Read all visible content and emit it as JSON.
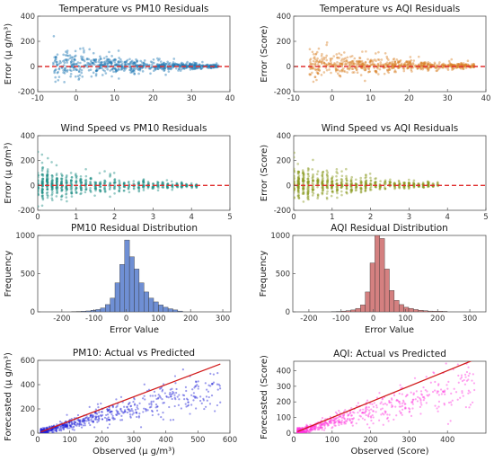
{
  "colors": {
    "pm10_scatter": "#1f77b4",
    "aqi_scatter": "#d9822b",
    "wind_pm10": "#1f8f85",
    "wind_aqi": "#8a9a1e",
    "pm10_hist": "#6f8fd4",
    "aqi_hist": "#d48080",
    "pm10_avp": "#1f1fd6",
    "aqi_avp": "#ff33dd",
    "zero_line": "#e03030",
    "fit_line": "#d11a1a",
    "axis": "#555555"
  },
  "chart_data": [
    {
      "id": "temp-pm10",
      "type": "scatter",
      "title": "Temperature vs PM10 Residuals",
      "ylabel": "Error (μ g/m³)",
      "xlim": [
        -10,
        40
      ],
      "ylim": [
        -200,
        400
      ],
      "xticks": [
        -10,
        0,
        10,
        20,
        30,
        40
      ],
      "yticks": [
        -200,
        0,
        200,
        400
      ],
      "zero_line": true,
      "points_description": "dense band around 0, spread decreasing from x=-5 to x=37",
      "x_range": [
        -6,
        37
      ],
      "y_spread_start": [
        -180,
        320
      ],
      "y_spread_end": [
        -15,
        25
      ]
    },
    {
      "id": "temp-aqi",
      "type": "scatter",
      "title": "Temperature vs AQI Residuals",
      "ylabel": "Error (Score)",
      "xlim": [
        -10,
        40
      ],
      "ylim": [
        -200,
        400
      ],
      "xticks": [
        -10,
        0,
        10,
        20,
        30,
        40
      ],
      "yticks": [
        -200,
        0,
        200,
        400
      ],
      "zero_line": true,
      "x_range": [
        -6,
        37
      ],
      "y_spread_start": [
        -170,
        300
      ],
      "y_spread_end": [
        -10,
        40
      ]
    },
    {
      "id": "wind-pm10",
      "type": "scatter",
      "title": "Wind Speed vs PM10 Residuals",
      "ylabel": "Error (μ g/m³)",
      "xlim": [
        0,
        5
      ],
      "ylim": [
        -200,
        400
      ],
      "xticks": [
        0,
        1,
        2,
        3,
        4,
        5
      ],
      "yticks": [
        -200,
        0,
        200,
        400
      ],
      "zero_line": true,
      "x_range": [
        0,
        4.2
      ],
      "y_spread_start": [
        -200,
        320
      ],
      "y_spread_end": [
        -20,
        20
      ]
    },
    {
      "id": "wind-aqi",
      "type": "scatter",
      "title": "Wind Speed vs AQI Residuals",
      "ylabel": "Error (Score)",
      "xlim": [
        0,
        5
      ],
      "ylim": [
        -200,
        400
      ],
      "xticks": [
        0,
        1,
        2,
        3,
        4,
        5
      ],
      "yticks": [
        -200,
        0,
        200,
        400
      ],
      "zero_line": true,
      "x_range": [
        0,
        3.8
      ],
      "y_spread_start": [
        -200,
        320
      ],
      "y_spread_end": [
        -15,
        30
      ]
    },
    {
      "id": "hist-pm10",
      "type": "bar",
      "title": "PM10 Residual Distribution",
      "xlabel": "Error Value",
      "ylabel": "Frequency",
      "xlim": [
        -275,
        325
      ],
      "ylim": [
        0,
        1000
      ],
      "xticks": [
        -200,
        -100,
        0,
        100,
        200,
        300
      ],
      "yticks": [
        0,
        500,
        1000
      ],
      "bin_edges": [
        -170,
        -155,
        -140,
        -125,
        -110,
        -95,
        -80,
        -65,
        -50,
        -35,
        -20,
        -5,
        10,
        25,
        40,
        55,
        70,
        85,
        100,
        115,
        130,
        145,
        160,
        175
      ],
      "values": [
        3,
        5,
        8,
        12,
        20,
        30,
        50,
        95,
        180,
        380,
        620,
        940,
        720,
        560,
        380,
        260,
        180,
        130,
        90,
        60,
        40,
        25,
        10
      ]
    },
    {
      "id": "hist-aqi",
      "type": "bar",
      "title": "AQI Residual Distribution",
      "xlabel": "Error Value",
      "ylabel": "Frequency",
      "xlim": [
        -250,
        350
      ],
      "ylim": [
        0,
        1000
      ],
      "xticks": [
        -200,
        -100,
        0,
        100,
        200,
        300
      ],
      "yticks": [
        0,
        500,
        1000
      ],
      "bin_edges": [
        -130,
        -115,
        -100,
        -85,
        -70,
        -55,
        -40,
        -25,
        -10,
        5,
        20,
        35,
        50,
        65,
        80,
        95,
        110,
        125,
        140,
        155,
        170,
        185,
        200,
        215,
        230
      ],
      "values": [
        3,
        5,
        10,
        15,
        25,
        45,
        90,
        260,
        640,
        1000,
        960,
        560,
        280,
        150,
        95,
        60,
        45,
        30,
        20,
        15,
        10,
        8,
        8,
        6
      ]
    },
    {
      "id": "avp-pm10",
      "type": "scatter",
      "title": "PM10: Actual vs Predicted",
      "xlabel": "Observed (μ g/m³)",
      "ylabel": "Forecasted (μ g/m³)",
      "xlim": [
        0,
        600
      ],
      "ylim": [
        0,
        600
      ],
      "xticks": [
        0,
        100,
        200,
        300,
        400,
        500,
        600
      ],
      "yticks": [
        0,
        200,
        400,
        600
      ],
      "fit_line": [
        [
          10,
          10
        ],
        [
          570,
          570
        ]
      ],
      "x_range": [
        10,
        570
      ]
    },
    {
      "id": "avp-aqi",
      "type": "scatter",
      "title": "AQI: Actual vs Predicted",
      "xlabel": "Observed (Score)",
      "ylabel": "Forecasted (Score)",
      "xlim": [
        0,
        500
      ],
      "ylim": [
        0,
        460
      ],
      "xticks": [
        0,
        100,
        200,
        300,
        400
      ],
      "yticks": [
        0,
        100,
        200,
        300,
        400
      ],
      "fit_line": [
        [
          10,
          10
        ],
        [
          465,
          465
        ]
      ],
      "x_range": [
        10,
        470
      ]
    }
  ]
}
